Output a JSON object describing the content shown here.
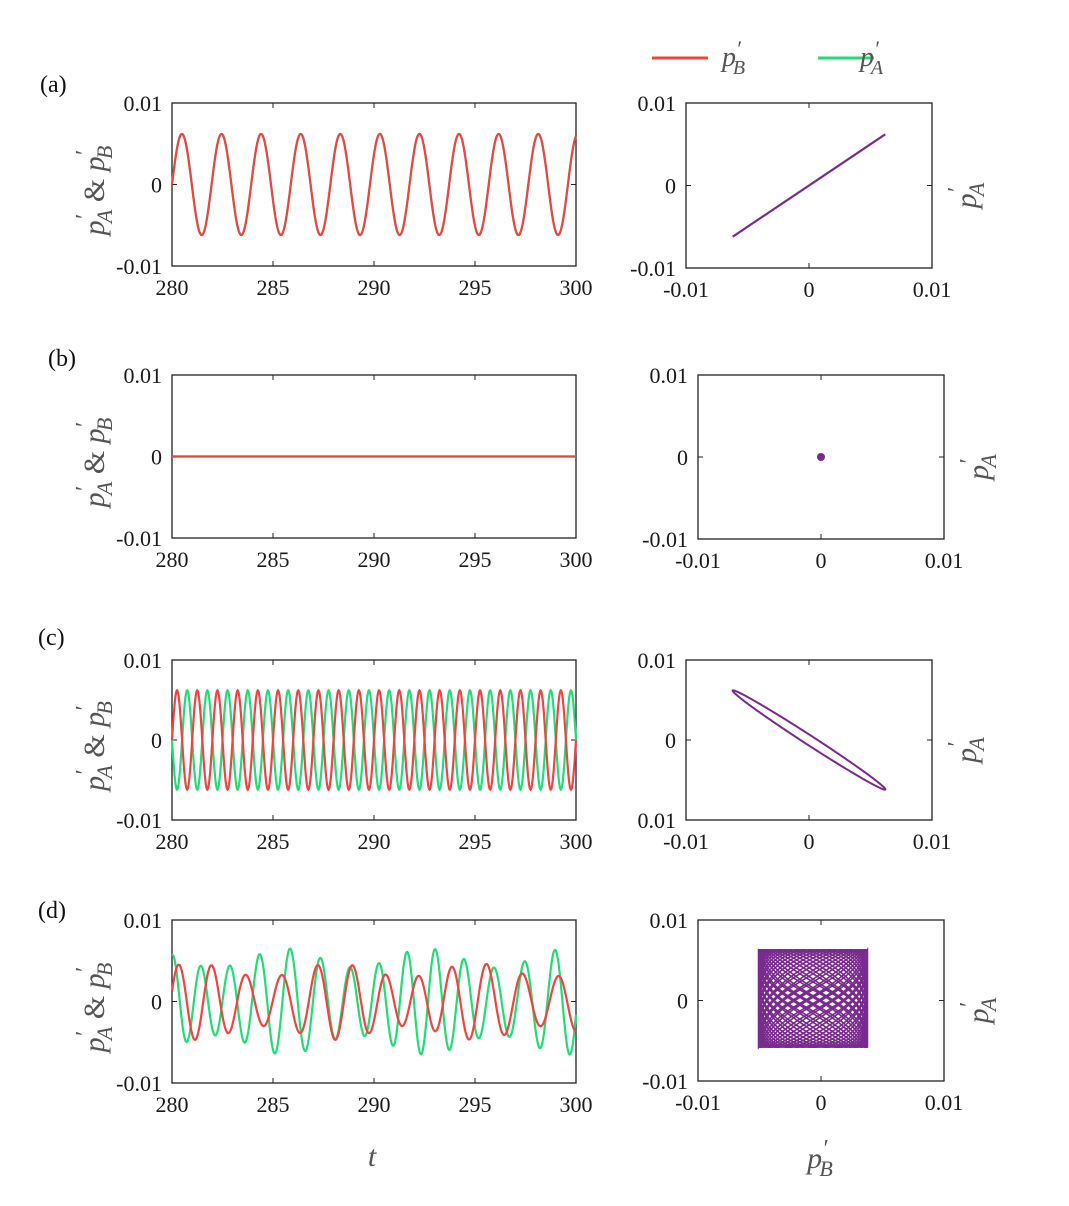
{
  "colors": {
    "pB": "#ee4444",
    "pA": "#22dd77",
    "phase": "#7a2a8e",
    "axis": "#222222"
  },
  "legend": {
    "items": [
      {
        "series": "pB",
        "label_base": "p",
        "label_sup": "′",
        "label_sub": "B"
      },
      {
        "series": "pA",
        "label_base": "p",
        "label_sup": "′",
        "label_sub": "A"
      }
    ]
  },
  "labels": {
    "time_y": {
      "p1": "p",
      "s1": "A",
      "amp": " & ",
      "p2": "p",
      "s2": "B",
      "prime": "′"
    },
    "phase_y": {
      "p": "p",
      "s": "A",
      "prime": "′"
    },
    "time_x": "t",
    "phase_x": {
      "p": "p",
      "s": "B",
      "prime": "′"
    }
  },
  "chart_data": [
    {
      "panel": "(a)",
      "type": "line",
      "title": "",
      "xlim": [
        280,
        300
      ],
      "ylim": [
        -0.01,
        0.01
      ],
      "xticks": [
        "280",
        "285",
        "290",
        "295",
        "300"
      ],
      "yticks": [
        "0.01",
        "0",
        "-0.01"
      ],
      "series": [
        {
          "key": "pB",
          "name": "p'B",
          "amplitude": 0.0062,
          "period": 1.96,
          "phase": 0.0,
          "modulated": false
        },
        {
          "key": "pA",
          "name": "p'A",
          "amplitude": 0.0062,
          "period": 1.96,
          "phase": 0.0,
          "modulated": false
        }
      ]
    },
    {
      "panel": "(a)",
      "type": "scatter",
      "mode": "line-segment",
      "title": "",
      "xlim": [
        -0.01,
        0.01
      ],
      "ylim": [
        -0.01,
        0.01
      ],
      "xticks": [
        "-0.01",
        "0",
        "0.01"
      ],
      "yticks": [
        "0.01",
        "0",
        "-0.01"
      ],
      "segment": {
        "x": [
          -0.0062,
          0.0062
        ],
        "y": [
          -0.0062,
          0.0062
        ]
      }
    },
    {
      "panel": "(b)",
      "type": "line",
      "title": "",
      "xlim": [
        280,
        300
      ],
      "ylim": [
        -0.01,
        0.01
      ],
      "xticks": [
        "280",
        "285",
        "290",
        "295",
        "300"
      ],
      "yticks": [
        "0.01",
        "0",
        "-0.01"
      ],
      "series": [
        {
          "key": "pB",
          "name": "p'B",
          "amplitude": 0.0,
          "period": 1.96,
          "phase": 0.0,
          "modulated": false
        },
        {
          "key": "pA",
          "name": "p'A",
          "amplitude": 0.0,
          "period": 1.96,
          "phase": 0.0,
          "modulated": false
        }
      ]
    },
    {
      "panel": "(b)",
      "type": "scatter",
      "mode": "point",
      "title": "",
      "xlim": [
        -0.01,
        0.01
      ],
      "ylim": [
        -0.01,
        0.01
      ],
      "xticks": [
        "-0.01",
        "0",
        "0.01"
      ],
      "yticks": [
        "0.01",
        "0",
        "-0.01"
      ],
      "point": {
        "x": 0,
        "y": 0
      }
    },
    {
      "panel": "(c)",
      "type": "line",
      "title": "",
      "xlim": [
        280,
        300
      ],
      "ylim": [
        -0.01,
        0.01
      ],
      "xticks": [
        "280",
        "285",
        "290",
        "295",
        "300"
      ],
      "yticks": [
        "0.01",
        "0",
        "-0.01"
      ],
      "series": [
        {
          "key": "pB",
          "name": "p'B",
          "amplitude": 0.0062,
          "period": 1.0,
          "phase": 0.0,
          "modulated": false
        },
        {
          "key": "pA",
          "name": "p'A",
          "amplitude": 0.0062,
          "period": 1.0,
          "phase": 3.1416,
          "modulated": false
        }
      ]
    },
    {
      "panel": "(c)",
      "type": "scatter",
      "mode": "anti-phase-loop",
      "title": "",
      "xlim": [
        -0.01,
        0.01
      ],
      "ylim": [
        0.01,
        -0.01
      ],
      "xticks": [
        "-0.01",
        "0",
        "0.01"
      ],
      "yticks": [
        "0.01",
        "0",
        "0.01"
      ],
      "segment": {
        "x": [
          -0.0062,
          0.0062
        ],
        "y": [
          0.0062,
          -0.0062
        ]
      }
    },
    {
      "panel": "(d)",
      "type": "line",
      "title": "",
      "xlim": [
        280,
        300
      ],
      "ylim": [
        -0.01,
        0.01
      ],
      "xticks": [
        "280",
        "285",
        "290",
        "295",
        "300"
      ],
      "yticks": [
        "0.01",
        "0",
        "-0.01"
      ],
      "series": [
        {
          "key": "pB",
          "name": "p'B",
          "amplitude": 0.0047,
          "period": 1.7,
          "phase": 0.3,
          "modulated": true
        },
        {
          "key": "pA",
          "name": "p'A",
          "amplitude": 0.0065,
          "period": 1.45,
          "phase": 1.4,
          "modulated": true
        }
      ]
    },
    {
      "panel": "(d)",
      "type": "scatter",
      "mode": "quasi-periodic",
      "title": "",
      "xlim": [
        -0.01,
        0.01
      ],
      "ylim": [
        -0.01,
        0.01
      ],
      "xticks": [
        "-0.01",
        "0",
        "0.01"
      ],
      "yticks": [
        "0.01",
        "0",
        "-0.01"
      ],
      "range": {
        "x": [
          -0.0058,
          0.0045
        ],
        "y": [
          -0.0058,
          0.0063
        ]
      }
    }
  ]
}
